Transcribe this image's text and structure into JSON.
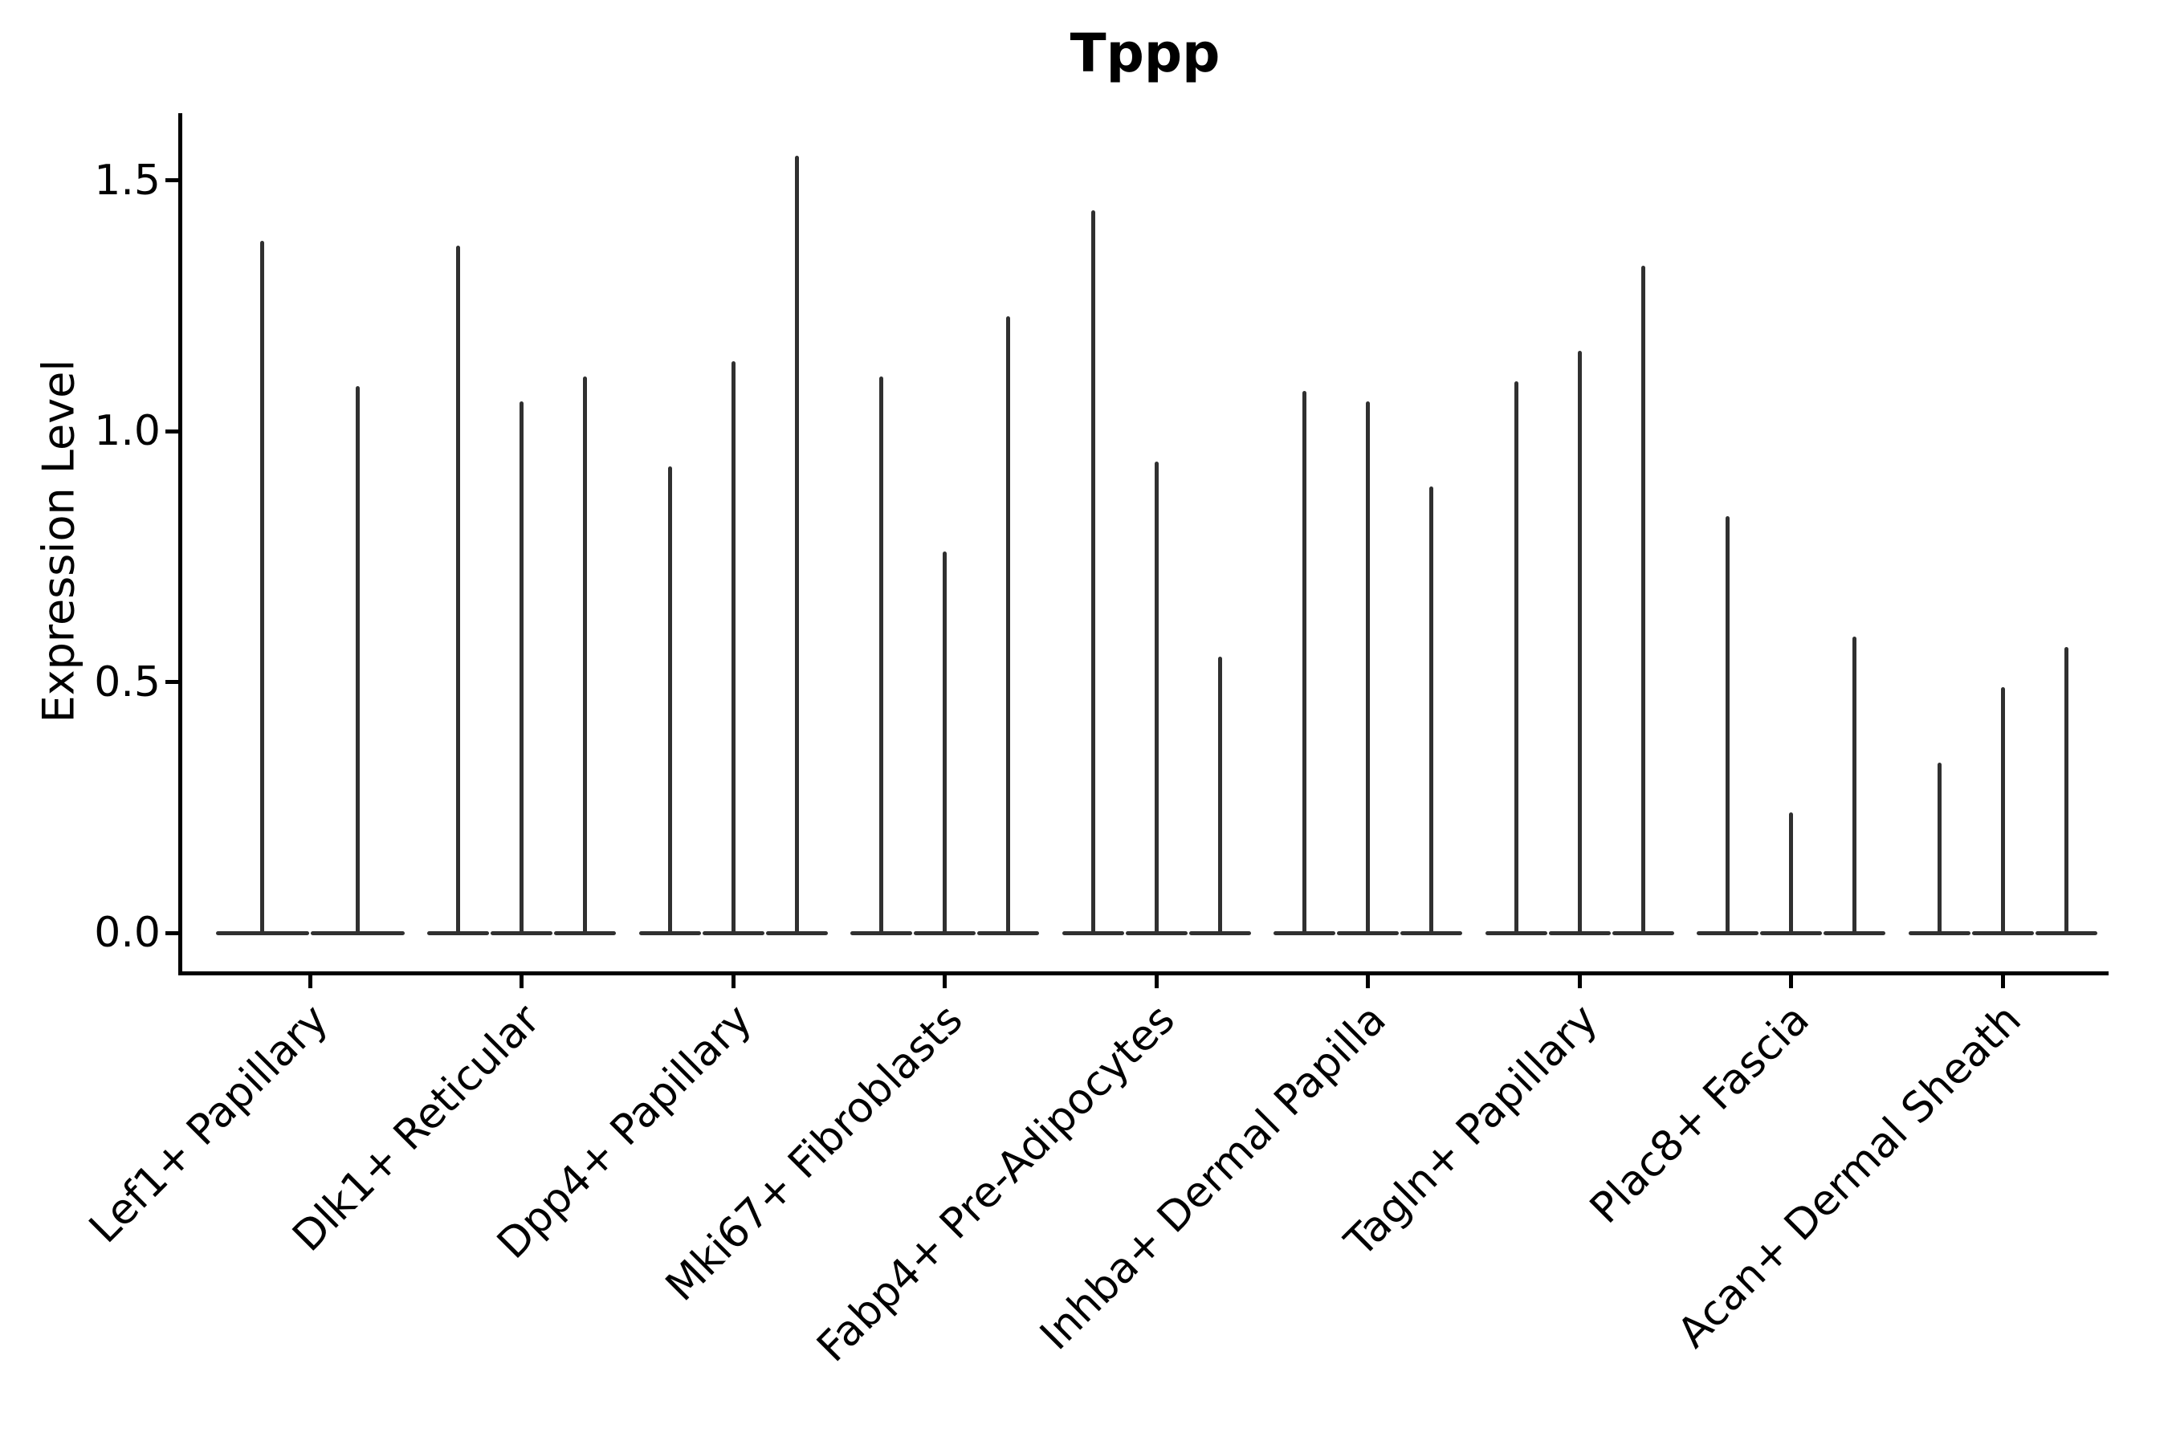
{
  "title": "Tppp",
  "y_axis": {
    "label": "Expression Level",
    "tick_labels": [
      "0.0",
      "0.5",
      "1.0",
      "1.5"
    ],
    "tick_values": [
      0.0,
      0.5,
      1.0,
      1.5
    ]
  },
  "colors": {
    "violin": "#303030",
    "axis": "#000000",
    "text": "#000000",
    "background": "#ffffff"
  },
  "chart_data": {
    "type": "violin",
    "title": "Tppp",
    "xlabel": "",
    "ylabel": "Expression Level",
    "ylim": [
      0,
      1.71
    ],
    "yticks": [
      0.0,
      0.5,
      1.0,
      1.5
    ],
    "grid": false,
    "legend_position": "none",
    "style": "thin spike violins; bulk of density at 0 with narrow spike up to the max expression value",
    "categories": [
      "Lef1+ Papillary",
      "Dlk1+ Reticular",
      "Dpp4+ Papillary",
      "Mki67+ Fibroblasts",
      "Fabp4+ Pre-Adipocytes",
      "Inhba+ Dermal Papilla",
      "Tagln+ Papillary",
      "Plac8+ Fascia",
      "Acan+ Dermal Sheath"
    ],
    "groups": [
      {
        "category": "Lef1+ Papillary",
        "violin_max_values": [
          1.38,
          1.09
        ]
      },
      {
        "category": "Dlk1+ Reticular",
        "violin_max_values": [
          1.37,
          1.06,
          1.11
        ]
      },
      {
        "category": "Dpp4+ Papillary",
        "violin_max_values": [
          0.93,
          1.14,
          1.55
        ]
      },
      {
        "category": "Mki67+ Fibroblasts",
        "violin_max_values": [
          1.11,
          0.76,
          1.23
        ]
      },
      {
        "category": "Fabp4+ Pre-Adipocytes",
        "violin_max_values": [
          1.44,
          0.94,
          0.55
        ]
      },
      {
        "category": "Inhba+ Dermal Papilla",
        "violin_max_values": [
          1.08,
          1.06,
          0.89
        ]
      },
      {
        "category": "Tagln+ Papillary",
        "violin_max_values": [
          1.1,
          1.16,
          1.33
        ]
      },
      {
        "category": "Plac8+ Fascia",
        "violin_max_values": [
          0.83,
          0.24,
          0.59
        ]
      },
      {
        "category": "Acan+ Dermal Sheath",
        "violin_max_values": [
          0.34,
          0.49,
          0.57
        ]
      }
    ]
  }
}
